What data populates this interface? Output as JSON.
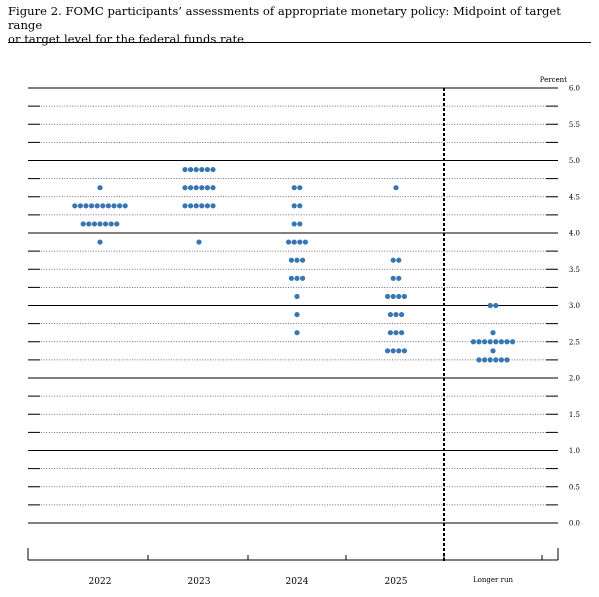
{
  "figure": {
    "caption": "Figure 2.  FOMC participants’ assessments of appropriate monetary policy:  Midpoint of target range\nor target level for the federal funds rate"
  },
  "chart_data": {
    "type": "scatter",
    "title": "Figure 2.  FOMC participants’ assessments of appropriate monetary policy:  Midpoint of target range or target level for the federal funds rate",
    "xlabel": "",
    "ylabel": "Percent",
    "categories": [
      "2022",
      "2023",
      "2024",
      "2025",
      "Longer run"
    ],
    "ylim": [
      0,
      6
    ],
    "yticks": [
      "0.0",
      "0.5",
      "1.0",
      "1.5",
      "2.0",
      "2.5",
      "3.0",
      "3.5",
      "4.0",
      "4.5",
      "5.0",
      "5.5",
      "6.0"
    ],
    "grid": true,
    "dot_color": "#3576b3",
    "series": [
      {
        "category": "2022",
        "points": [
          {
            "y": 4.625,
            "count": 1
          },
          {
            "y": 4.375,
            "count": 10
          },
          {
            "y": 4.125,
            "count": 7
          },
          {
            "y": 3.875,
            "count": 1
          }
        ]
      },
      {
        "category": "2023",
        "points": [
          {
            "y": 4.875,
            "count": 6
          },
          {
            "y": 4.625,
            "count": 6
          },
          {
            "y": 4.375,
            "count": 6
          },
          {
            "y": 3.875,
            "count": 1
          }
        ]
      },
      {
        "category": "2024",
        "points": [
          {
            "y": 4.625,
            "count": 2
          },
          {
            "y": 4.375,
            "count": 2
          },
          {
            "y": 4.125,
            "count": 2
          },
          {
            "y": 3.875,
            "count": 4
          },
          {
            "y": 3.625,
            "count": 3
          },
          {
            "y": 3.375,
            "count": 3
          },
          {
            "y": 3.125,
            "count": 1
          },
          {
            "y": 2.875,
            "count": 1
          },
          {
            "y": 2.625,
            "count": 1
          }
        ]
      },
      {
        "category": "2025",
        "points": [
          {
            "y": 4.625,
            "count": 1
          },
          {
            "y": 3.625,
            "count": 2
          },
          {
            "y": 3.375,
            "count": 2
          },
          {
            "y": 3.125,
            "count": 4
          },
          {
            "y": 2.875,
            "count": 3
          },
          {
            "y": 2.625,
            "count": 3
          },
          {
            "y": 2.375,
            "count": 4
          }
        ]
      },
      {
        "category": "Longer run",
        "points": [
          {
            "y": 3.0,
            "count": 2
          },
          {
            "y": 2.625,
            "count": 1
          },
          {
            "y": 2.5,
            "count": 8
          },
          {
            "y": 2.375,
            "count": 1
          },
          {
            "y": 2.25,
            "count": 6
          }
        ]
      }
    ]
  }
}
